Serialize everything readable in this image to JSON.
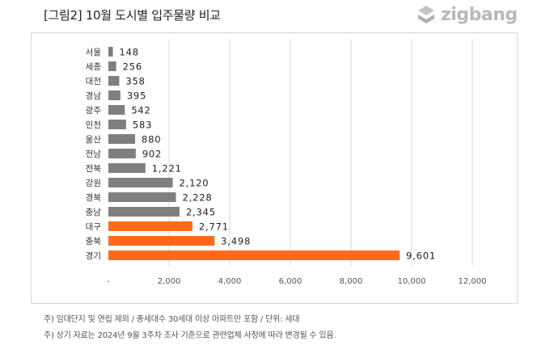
{
  "header": {
    "title": "[그림2] 10월 도시별 입주물량 비교",
    "logo_text": "zigbang"
  },
  "chart_data": {
    "type": "bar",
    "orientation": "horizontal",
    "categories": [
      "서울",
      "세종",
      "대전",
      "경남",
      "광주",
      "인천",
      "울산",
      "전남",
      "전북",
      "강원",
      "경북",
      "충남",
      "대구",
      "충북",
      "경기"
    ],
    "values": [
      148,
      256,
      358,
      395,
      542,
      583,
      880,
      902,
      1221,
      2120,
      2228,
      2345,
      2771,
      3498,
      9601
    ],
    "value_labels": [
      "148",
      "256",
      "358",
      "395",
      "542",
      "583",
      "880",
      "902",
      "1,221",
      "2,120",
      "2,228",
      "2,345",
      "2,771",
      "3,498",
      "9,601"
    ],
    "highlighted": [
      "대구",
      "충북",
      "경기"
    ],
    "xlim": [
      0,
      12000
    ],
    "x_ticks": [
      0,
      2000,
      4000,
      6000,
      8000,
      10000,
      12000
    ],
    "x_tick_labels": [
      "-",
      "2,000",
      "4,000",
      "6,000",
      "8,000",
      "10,000",
      "12,000"
    ],
    "grid": true,
    "colors": {
      "default": "#7f7f7f",
      "highlight": "#ff6a1a",
      "grid": "#d9d9d9"
    }
  },
  "notes": [
    "주) 임대단지 및 연립 제외 / 총세대수 30세대 이상 아파트만 포함 / 단위: 세대",
    "주) 상기 자료는 2024년 9월 3주차 조사 기준으로 관련업체 사정에 따라 변경될 수 있음."
  ]
}
